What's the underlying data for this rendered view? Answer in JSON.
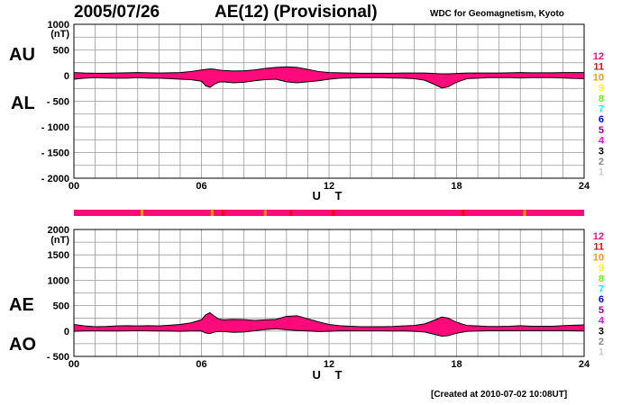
{
  "header": {
    "date": "2005/07/26",
    "title": "AE(12) (Provisional)",
    "source": "WDC for Geomagnetism, Kyoto"
  },
  "footer": {
    "created": "[Created at 2010-07-02 10:08UT]"
  },
  "colors": {
    "fill": "#ff0a7a",
    "grid": "#999999",
    "levels": [
      "#ff0a7a",
      "#ff0000",
      "#ff9900",
      "#ffff00",
      "#66ff00",
      "#00ffff",
      "#0000ff",
      "#990099",
      "#ff00ff",
      "#000000",
      "#888888",
      "#cccccc"
    ]
  },
  "level_labels": [
    "12",
    "11",
    "10",
    "9",
    "8",
    "7",
    "6",
    "5",
    "4",
    "3",
    "2",
    "1"
  ],
  "chart_data": [
    {
      "type": "area",
      "panel": "AU-AL",
      "side_labels": [
        "AU",
        "AL"
      ],
      "ylabel": "(nT)",
      "ylim": [
        -2000,
        1000
      ],
      "yticks": [
        "1000",
        "500",
        "0",
        "- 500",
        "- 1000",
        "- 1500",
        "- 2000"
      ],
      "ytick_values": [
        1000,
        500,
        0,
        -500,
        -1000,
        -1500,
        -2000
      ],
      "xlabel": "U T",
      "xlim": [
        0,
        24
      ],
      "xticks": [
        "00",
        "06",
        "12",
        "18",
        "24"
      ],
      "xtick_values": [
        0,
        6,
        12,
        18,
        24
      ],
      "grid": true,
      "x": [
        0,
        0.5,
        1,
        1.5,
        2,
        2.5,
        3,
        3.5,
        4,
        4.5,
        5,
        5.5,
        6,
        6.2,
        6.4,
        6.6,
        6.8,
        7,
        7.5,
        8,
        8.5,
        9,
        9.5,
        10,
        10.5,
        11,
        11.5,
        12,
        12.5,
        13,
        13.5,
        14,
        14.5,
        15,
        15.5,
        16,
        16.5,
        17,
        17.3,
        17.6,
        17.9,
        18.2,
        18.5,
        19,
        19.5,
        20,
        20.5,
        21,
        21.5,
        22,
        22.5,
        23,
        23.5,
        24
      ],
      "series": [
        {
          "name": "AU",
          "values": [
            60,
            50,
            45,
            45,
            50,
            55,
            60,
            55,
            50,
            55,
            60,
            80,
            110,
            120,
            130,
            125,
            110,
            100,
            90,
            95,
            110,
            140,
            160,
            170,
            160,
            120,
            80,
            60,
            55,
            50,
            45,
            45,
            45,
            45,
            50,
            50,
            50,
            40,
            35,
            35,
            40,
            45,
            50,
            50,
            50,
            50,
            55,
            60,
            55,
            55,
            55,
            60,
            60,
            60
          ]
        },
        {
          "name": "AL",
          "values": [
            -70,
            -50,
            -40,
            -45,
            -50,
            -50,
            -40,
            -50,
            -50,
            -60,
            -70,
            -80,
            -110,
            -200,
            -230,
            -170,
            -130,
            -120,
            -140,
            -130,
            -100,
            -80,
            -70,
            -120,
            -140,
            -120,
            -100,
            -70,
            -50,
            -45,
            -40,
            -40,
            -40,
            -45,
            -50,
            -60,
            -90,
            -180,
            -240,
            -220,
            -150,
            -100,
            -60,
            -50,
            -40,
            -40,
            -40,
            -45,
            -40,
            -40,
            -40,
            -45,
            -55,
            -60
          ]
        }
      ]
    },
    {
      "type": "area",
      "panel": "AE-AO",
      "side_labels": [
        "AE",
        "AO"
      ],
      "ylabel": "(nT)",
      "ylim": [
        -500,
        2000
      ],
      "yticks": [
        "2000",
        "1500",
        "1000",
        "500",
        "0",
        "- 500"
      ],
      "ytick_values": [
        2000,
        1500,
        1000,
        500,
        0,
        -500
      ],
      "xlabel": "U T",
      "xlim": [
        0,
        24
      ],
      "xticks": [
        "00",
        "06",
        "12",
        "18",
        "24"
      ],
      "xtick_values": [
        0,
        6,
        12,
        18,
        24
      ],
      "grid": true,
      "x": [
        0,
        0.5,
        1,
        1.5,
        2,
        2.5,
        3,
        3.5,
        4,
        4.5,
        5,
        5.5,
        6,
        6.2,
        6.4,
        6.6,
        6.8,
        7,
        7.5,
        8,
        8.5,
        9,
        9.5,
        10,
        10.5,
        11,
        11.5,
        12,
        12.5,
        13,
        13.5,
        14,
        14.5,
        15,
        15.5,
        16,
        16.5,
        17,
        17.3,
        17.6,
        17.9,
        18.2,
        18.5,
        19,
        19.5,
        20,
        20.5,
        21,
        21.5,
        22,
        22.5,
        23,
        23.5,
        24
      ],
      "series": [
        {
          "name": "AE",
          "values": [
            130,
            100,
            85,
            90,
            100,
            105,
            100,
            105,
            100,
            115,
            130,
            160,
            220,
            320,
            360,
            295,
            240,
            220,
            230,
            225,
            210,
            220,
            230,
            290,
            300,
            240,
            180,
            130,
            105,
            95,
            85,
            85,
            85,
            90,
            100,
            110,
            140,
            220,
            275,
            255,
            190,
            145,
            110,
            100,
            90,
            90,
            95,
            105,
            95,
            95,
            95,
            105,
            115,
            120
          ]
        },
        {
          "name": "AO",
          "values": [
            -5,
            0,
            2,
            0,
            0,
            2,
            10,
            2,
            0,
            -2,
            -5,
            0,
            0,
            -40,
            -50,
            -20,
            -10,
            -10,
            -25,
            -18,
            5,
            30,
            45,
            25,
            10,
            0,
            -10,
            -5,
            2,
            2,
            2,
            2,
            2,
            0,
            0,
            -5,
            -20,
            -70,
            -100,
            -92,
            -55,
            -27,
            -5,
            0,
            5,
            5,
            7,
            7,
            7,
            7,
            7,
            7,
            2,
            0
          ]
        }
      ]
    }
  ],
  "quality_bar": {
    "base_level": "12",
    "marks": [
      {
        "at": 3.2,
        "level": "10"
      },
      {
        "at": 6.5,
        "level": "10"
      },
      {
        "at": 7.0,
        "level": "11"
      },
      {
        "at": 9.0,
        "level": "10"
      },
      {
        "at": 10.2,
        "level": "11"
      },
      {
        "at": 12.2,
        "level": "11"
      },
      {
        "at": 18.3,
        "level": "11"
      },
      {
        "at": 21.2,
        "level": "10"
      }
    ]
  }
}
